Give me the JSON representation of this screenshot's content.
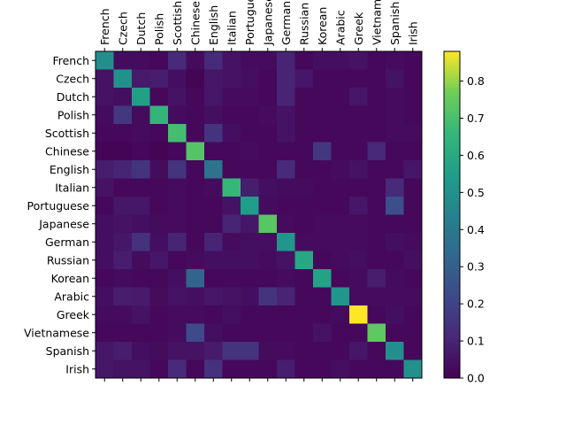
{
  "chart_data": {
    "type": "heatmap",
    "title": "",
    "xlabel": "",
    "ylabel": "",
    "x_categories": [
      "French",
      "Czech",
      "Dutch",
      "Polish",
      "Scottish",
      "Chinese",
      "English",
      "Italian",
      "Portuguese",
      "Japanese",
      "German",
      "Russian",
      "Korean",
      "Arabic",
      "Greek",
      "Vietnamese",
      "Spanish",
      "Irish"
    ],
    "y_categories": [
      "French",
      "Czech",
      "Dutch",
      "Polish",
      "Scottish",
      "Chinese",
      "English",
      "Italian",
      "Portuguese",
      "Japanese",
      "German",
      "Russian",
      "Korean",
      "Arabic",
      "Greek",
      "Vietnamese",
      "Spanish",
      "Irish"
    ],
    "matrix": [
      [
        0.49,
        0.03,
        0.03,
        0.02,
        0.12,
        0.03,
        0.12,
        0.05,
        0.03,
        0.03,
        0.1,
        0.02,
        0.04,
        0.04,
        0.05,
        0.02,
        0.03,
        0.02
      ],
      [
        0.05,
        0.5,
        0.07,
        0.08,
        0.04,
        0.01,
        0.06,
        0.05,
        0.04,
        0.02,
        0.1,
        0.06,
        0.02,
        0.02,
        0.02,
        0.02,
        0.05,
        0.02
      ],
      [
        0.05,
        0.04,
        0.56,
        0.02,
        0.05,
        0.02,
        0.06,
        0.03,
        0.03,
        0.02,
        0.1,
        0.02,
        0.02,
        0.02,
        0.06,
        0.02,
        0.03,
        0.02
      ],
      [
        0.03,
        0.16,
        0.03,
        0.65,
        0.03,
        0.02,
        0.04,
        0.02,
        0.02,
        0.03,
        0.05,
        0.02,
        0.02,
        0.02,
        0.02,
        0.02,
        0.03,
        0.02
      ],
      [
        0.02,
        0.02,
        0.03,
        0.02,
        0.69,
        0.02,
        0.15,
        0.04,
        0.02,
        0.02,
        0.05,
        0.02,
        0.02,
        0.02,
        0.02,
        0.02,
        0.03,
        0.03
      ],
      [
        0.01,
        0.01,
        0.02,
        0.01,
        0.02,
        0.72,
        0.02,
        0.02,
        0.03,
        0.02,
        0.02,
        0.02,
        0.16,
        0.02,
        0.02,
        0.11,
        0.02,
        0.02
      ],
      [
        0.08,
        0.1,
        0.15,
        0.03,
        0.15,
        0.02,
        0.38,
        0.02,
        0.02,
        0.02,
        0.12,
        0.02,
        0.02,
        0.03,
        0.05,
        0.02,
        0.02,
        0.06
      ],
      [
        0.05,
        0.02,
        0.02,
        0.02,
        0.03,
        0.02,
        0.03,
        0.66,
        0.08,
        0.04,
        0.03,
        0.03,
        0.02,
        0.02,
        0.02,
        0.02,
        0.12,
        0.02
      ],
      [
        0.02,
        0.06,
        0.06,
        0.02,
        0.03,
        0.02,
        0.02,
        0.05,
        0.55,
        0.03,
        0.02,
        0.02,
        0.02,
        0.02,
        0.06,
        0.02,
        0.24,
        0.02
      ],
      [
        0.04,
        0.05,
        0.04,
        0.03,
        0.03,
        0.02,
        0.02,
        0.1,
        0.06,
        0.73,
        0.03,
        0.02,
        0.03,
        0.03,
        0.03,
        0.02,
        0.02,
        0.02
      ],
      [
        0.04,
        0.06,
        0.14,
        0.04,
        0.1,
        0.02,
        0.1,
        0.03,
        0.04,
        0.04,
        0.52,
        0.03,
        0.03,
        0.03,
        0.03,
        0.02,
        0.04,
        0.03
      ],
      [
        0.04,
        0.08,
        0.03,
        0.06,
        0.02,
        0.03,
        0.04,
        0.04,
        0.04,
        0.03,
        0.05,
        0.59,
        0.02,
        0.03,
        0.04,
        0.02,
        0.02,
        0.04
      ],
      [
        0.02,
        0.03,
        0.02,
        0.02,
        0.04,
        0.32,
        0.02,
        0.02,
        0.02,
        0.02,
        0.03,
        0.02,
        0.57,
        0.02,
        0.03,
        0.08,
        0.03,
        0.02
      ],
      [
        0.04,
        0.08,
        0.07,
        0.03,
        0.05,
        0.04,
        0.06,
        0.05,
        0.04,
        0.15,
        0.1,
        0.02,
        0.02,
        0.52,
        0.03,
        0.03,
        0.03,
        0.03
      ],
      [
        0.03,
        0.03,
        0.05,
        0.02,
        0.03,
        0.03,
        0.02,
        0.04,
        0.02,
        0.02,
        0.02,
        0.02,
        0.02,
        0.03,
        0.88,
        0.02,
        0.04,
        0.02
      ],
      [
        0.02,
        0.02,
        0.02,
        0.02,
        0.03,
        0.22,
        0.04,
        0.02,
        0.02,
        0.02,
        0.02,
        0.02,
        0.05,
        0.02,
        0.02,
        0.74,
        0.02,
        0.02
      ],
      [
        0.06,
        0.08,
        0.04,
        0.03,
        0.05,
        0.05,
        0.07,
        0.15,
        0.15,
        0.03,
        0.03,
        0.02,
        0.02,
        0.02,
        0.06,
        0.02,
        0.49,
        0.02
      ],
      [
        0.06,
        0.05,
        0.05,
        0.02,
        0.12,
        0.02,
        0.14,
        0.02,
        0.02,
        0.02,
        0.08,
        0.02,
        0.02,
        0.04,
        0.02,
        0.02,
        0.02,
        0.5
      ]
    ],
    "colormap": "viridis",
    "vmin": 0.0,
    "vmax": 0.88,
    "colorbar_ticks": [
      "0.0",
      "0.1",
      "0.2",
      "0.3",
      "0.4",
      "0.5",
      "0.6",
      "0.7",
      "0.8"
    ],
    "colorbar_placement": "right",
    "grid": false
  }
}
